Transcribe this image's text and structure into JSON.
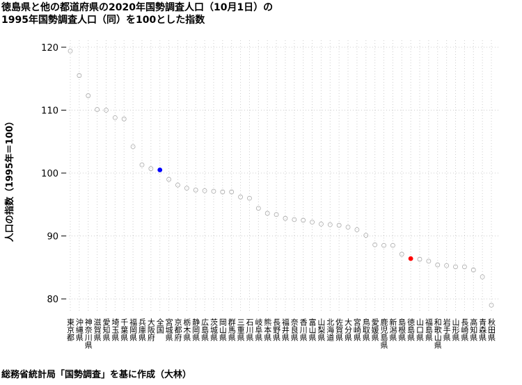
{
  "chart_data": {
    "type": "dot",
    "title": [
      "徳島県と他の都道府県の2020年国勢調査人口（10月1日）の",
      "1995年国勢調査人口（同）を100とした指数"
    ],
    "ylabel": "人口の指数（1995年＝100）",
    "caption": "総務省統計局「国勢調査」を基に作成（大林）",
    "categories": [
      "東京都",
      "沖縄県",
      "神奈川県",
      "滋賀県",
      "愛知県",
      "埼玉県",
      "千葉県",
      "福岡県",
      "兵庫県",
      "大阪府",
      "全国",
      "宮城県",
      "京都府",
      "栃木県",
      "静岡県",
      "広島県",
      "茨城県",
      "岡山県",
      "群馬県",
      "三重県",
      "石川県",
      "岐阜県",
      "熊本県",
      "長野県",
      "福井県",
      "奈良県",
      "香川県",
      "富山県",
      "山梨県",
      "北海道",
      "佐賀県",
      "大分県",
      "宮崎県",
      "鳥取県",
      "愛媛県",
      "鹿児島県",
      "新潟県",
      "島根県",
      "徳島県",
      "山口県",
      "福島県",
      "和歌山県",
      "岩手県",
      "山形県",
      "長崎県",
      "高知県",
      "青森県",
      "秋田県"
    ],
    "values": [
      119.4,
      115.5,
      112.3,
      110.1,
      110.0,
      108.8,
      108.6,
      104.2,
      101.3,
      100.7,
      100.5,
      99.0,
      98.1,
      97.6,
      97.3,
      97.2,
      97.1,
      97.0,
      97.0,
      96.2,
      96.0,
      94.4,
      93.6,
      93.4,
      92.8,
      92.6,
      92.5,
      92.2,
      91.9,
      91.8,
      91.7,
      91.4,
      91.0,
      90.1,
      88.6,
      88.5,
      88.5,
      87.1,
      86.4,
      86.3,
      86.0,
      85.4,
      85.3,
      85.1,
      85.1,
      84.6,
      83.5,
      79.0
    ],
    "marker_fill": [
      "none",
      "none",
      "none",
      "none",
      "none",
      "none",
      "none",
      "none",
      "none",
      "none",
      "#0000ff",
      "none",
      "none",
      "none",
      "none",
      "none",
      "none",
      "none",
      "none",
      "none",
      "none",
      "none",
      "none",
      "none",
      "none",
      "none",
      "none",
      "none",
      "none",
      "none",
      "none",
      "none",
      "none",
      "none",
      "none",
      "none",
      "none",
      "none",
      "#ff0000",
      "none",
      "none",
      "none",
      "none",
      "none",
      "none",
      "none",
      "none",
      "none"
    ],
    "color": "#aaaaaa",
    "ylim": [
      77.8,
      121.1
    ],
    "yticks": [
      80,
      90,
      100,
      110,
      120
    ],
    "grid": true
  }
}
